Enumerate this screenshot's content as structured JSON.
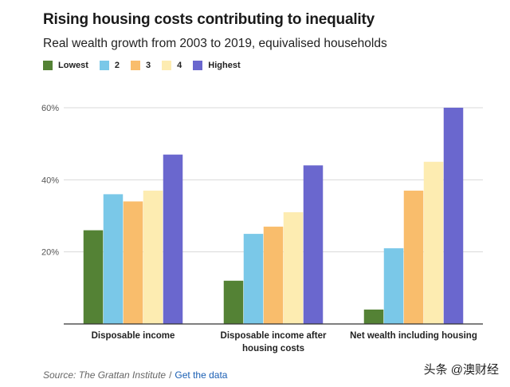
{
  "title": "Rising housing costs contributing to inequality",
  "subtitle": "Real wealth growth from 2003 to 2019, equivalised households",
  "source": {
    "text": "Source: The Grattan Institute",
    "separator": "/",
    "link_label": "Get the data"
  },
  "watermark": "头条 @澳财经",
  "chart_data": {
    "type": "bar",
    "title": "Rising housing costs contributing to inequality",
    "subtitle": "Real wealth growth from 2003 to 2019, equivalised households",
    "categories": [
      "Disposable income",
      "Disposable income after housing costs",
      "Net wealth including housing"
    ],
    "category_lines": [
      [
        "Disposable income"
      ],
      [
        "Disposable income after",
        "housing costs"
      ],
      [
        "Net wealth including housing"
      ]
    ],
    "series": [
      {
        "name": "Lowest",
        "color": "#548235",
        "values": [
          26,
          12,
          4
        ]
      },
      {
        "name": "2",
        "color": "#7ac8e8",
        "values": [
          36,
          25,
          21
        ]
      },
      {
        "name": "3",
        "color": "#f9bd6c",
        "values": [
          34,
          27,
          37
        ]
      },
      {
        "name": "4",
        "color": "#fdecb1",
        "values": [
          37,
          31,
          45
        ]
      },
      {
        "name": "Highest",
        "color": "#6a67ce",
        "values": [
          47,
          44,
          60
        ]
      }
    ],
    "y_ticks": [
      20,
      40,
      60
    ],
    "y_tick_labels": [
      "20%",
      "40%",
      "60%"
    ],
    "ylim": [
      0,
      60
    ],
    "legend_position": "top-left",
    "grid": true
  }
}
